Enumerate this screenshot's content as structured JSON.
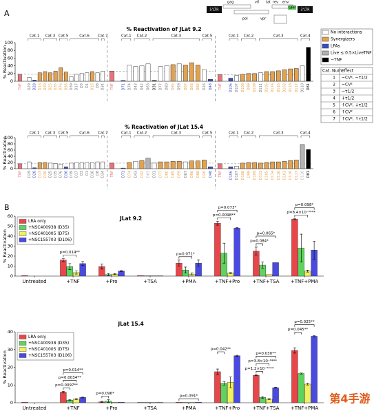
{
  "panel_a": {
    "label": "A",
    "legend": [
      {
        "name": "No interactions",
        "color": "#ffffff"
      },
      {
        "name": "Synergizers",
        "color": "#e3a24f"
      },
      {
        "name": "LPAs",
        "color": "#3a4cc4"
      },
      {
        "name": "Live ≤ 0.5×LiveTNF",
        "color": "#b3b3b3"
      },
      {
        "name": "−TNF",
        "color": "#000000"
      }
    ],
    "table": {
      "header": [
        "Cat. Num",
        "Effect"
      ],
      "rows": [
        [
          "1",
          "~CV², ~τ1/2"
        ],
        [
          "2",
          "~CV²"
        ],
        [
          "3",
          "~τ1/2"
        ],
        [
          "4",
          "↓τ1/2"
        ],
        [
          "5",
          "↑CV², ↓τ1/2"
        ],
        [
          "6",
          "↑CV²"
        ],
        [
          "7",
          "↑CV², ↑τ1/2"
        ]
      ]
    }
  },
  "genome": {
    "labels": [
      "5'LTR",
      "gag",
      "pol",
      "vif",
      "vpr",
      "tat",
      "rev",
      "env",
      "GFP",
      "3'LTR"
    ]
  },
  "panel_b": {
    "label": "B"
  },
  "watermark": "第4手游",
  "chart_data": [
    {
      "type": "column",
      "title": "% Reactivation of JLat 9.2",
      "y_label": "% Reactivation",
      "ylim": [
        0,
        100
      ],
      "yticks": [
        0,
        20,
        40,
        60,
        80,
        100
      ],
      "groups": [
        {
          "control": {
            "category": "TNF",
            "value": 18,
            "color": "#e8737a"
          },
          "clusters": [
            {
              "label": "Cat.1",
              "categories": [
                "D29",
                "D28",
                "D13"
              ],
              "values": [
                10,
                3,
                22
              ],
              "colors": [
                "#ffffff",
                "#3a4cc4",
                "#e3a24f"
              ]
            },
            {
              "label": "Cat.3",
              "categories": [
                "D30",
                "D25",
                "D35"
              ],
              "values": [
                25,
                22,
                26
              ],
              "colors": [
                "#e3a24f",
                "#e3a24f",
                "#e3a24f"
              ]
            },
            {
              "label": "Cat.5",
              "categories": [
                "D76",
                "D36"
              ],
              "values": [
                35,
                24
              ],
              "colors": [
                "#e3a24f",
                "#e3a24f"
              ]
            },
            {
              "label": "Cat.6",
              "categories": [
                "D39",
                "D17",
                "D3",
                "D1",
                "D16",
                "D8"
              ],
              "values": [
                12,
                18,
                20,
                22,
                25,
                22
              ],
              "colors": [
                "#ffffff",
                "#ffffff",
                "#ffffff",
                "#ffffff",
                "#e3a24f",
                "#ffffff"
              ]
            },
            {
              "label": "Cat.7",
              "categories": [
                "D34"
              ],
              "values": [
                26
              ],
              "colors": [
                "#ffffff"
              ]
            }
          ]
        },
        {
          "control": {
            "category": "TNF",
            "value": 26,
            "color": "#e8737a"
          },
          "clusters": [
            {
              "label": "Cat.1",
              "categories": [
                "D71",
                "D74"
              ],
              "values": [
                2,
                42
              ],
              "colors": [
                "#3a4cc4",
                "#ffffff"
              ]
            },
            {
              "label": "Cat.2",
              "categories": [
                "D43",
                "D42",
                "D63"
              ],
              "values": [
                38,
                40,
                45
              ],
              "colors": [
                "#ffffff",
                "#ffffff",
                "#ffffff"
              ]
            },
            {
              "label": "Cat.3",
              "categories": [
                "D31",
                "D77",
                "D80",
                "D85",
                "D59",
                "D67",
                "D66",
                "D86"
              ],
              "values": [
                2,
                38,
                40,
                43,
                45,
                42,
                48,
                42
              ],
              "colors": [
                "#000000",
                "#ffffff",
                "#ffffff",
                "#e3a24f",
                "#ffffff",
                "#e3a24f",
                "#e3a24f",
                "#e3a24f"
              ]
            },
            {
              "label": "Cat.5",
              "categories": [
                "D26",
                "D48"
              ],
              "values": [
                30,
                5
              ],
              "colors": [
                "#ffffff",
                "#3a4cc4"
              ]
            }
          ]
        },
        {
          "control": {
            "category": "TNF",
            "value": 17,
            "color": "#e8737a"
          },
          "clusters": [
            {
              "label": "Cat.1",
              "categories": [
                "D106",
                "D107"
              ],
              "values": [
                8,
                15
              ],
              "colors": [
                "#3a4cc4",
                "#ffffff"
              ]
            },
            {
              "label": "Cat.2",
              "categories": [
                "D108",
                "D99",
                "D109"
              ],
              "values": [
                18,
                20,
                20
              ],
              "colors": [
                "#e3a24f",
                "#e3a24f",
                "#e3a24f"
              ]
            },
            {
              "label": "Cat.3",
              "categories": [
                "D111",
                "D105",
                "D114",
                "D116",
                "D103",
                "D118",
                "D117"
              ],
              "values": [
                22,
                25,
                25,
                27,
                30,
                32,
                33
              ],
              "colors": [
                "#ffffff",
                "#e3a24f",
                "#e3a24f",
                "#e3a24f",
                "#e3a24f",
                "#e3a24f",
                "#e3a24f"
              ]
            },
            {
              "label": "Cat.4",
              "categories": [
                "D110",
                "D81"
              ],
              "values": [
                40,
                88
              ],
              "colors": [
                "#ffffff",
                "#000000"
              ]
            }
          ]
        }
      ]
    },
    {
      "type": "column",
      "title": "% Reactivation of JLat 15.4",
      "y_label": "% Reactivation",
      "ylim": [
        0,
        100
      ],
      "yticks": [
        0,
        20,
        40,
        60,
        80,
        100
      ],
      "groups": [
        {
          "control": {
            "category": "TNF",
            "value": 16,
            "color": "#e8737a"
          },
          "clusters": [
            {
              "label": "Cat.1",
              "categories": [
                "D29",
                "D28",
                "D13"
              ],
              "values": [
                22,
                3,
                20
              ],
              "colors": [
                "#ffffff",
                "#3a4cc4",
                "#e3a24f"
              ]
            },
            {
              "label": "Cat.3",
              "categories": [
                "D30",
                "D25",
                "D35"
              ],
              "values": [
                20,
                18,
                17
              ],
              "colors": [
                "#e3a24f",
                "#ffffff",
                "#ffffff"
              ]
            },
            {
              "label": "Cat.5",
              "categories": [
                "D76",
                "D36"
              ],
              "values": [
                14,
                6
              ],
              "colors": [
                "#ffffff",
                "#3a4cc4"
              ]
            },
            {
              "label": "Cat.6",
              "categories": [
                "D39",
                "D17",
                "D3",
                "D1",
                "D16",
                "D8"
              ],
              "values": [
                18,
                20,
                20,
                20,
                20,
                22
              ],
              "colors": [
                "#ffffff",
                "#ffffff",
                "#ffffff",
                "#ffffff",
                "#ffffff",
                "#ffffff"
              ]
            },
            {
              "label": "Cat.7",
              "categories": [
                "D34"
              ],
              "values": [
                22
              ],
              "colors": [
                "#ffffff"
              ]
            }
          ]
        },
        {
          "control": {
            "category": "TNF",
            "value": 18,
            "color": "#e8737a"
          },
          "clusters": [
            {
              "label": "Cat.1",
              "categories": [
                "D71",
                "D74"
              ],
              "values": [
                2,
                20
              ],
              "colors": [
                "#3a4cc4",
                "#e3a24f"
              ]
            },
            {
              "label": "Cat.2",
              "categories": [
                "D43",
                "D42",
                "D63"
              ],
              "values": [
                24,
                26,
                34
              ],
              "colors": [
                "#ffffff",
                "#e3a24f",
                "#b3b3b3"
              ]
            },
            {
              "label": "Cat.3",
              "categories": [
                "D31",
                "D77",
                "D80",
                "D85",
                "D59",
                "D67",
                "D66",
                "D86"
              ],
              "values": [
                18,
                22,
                22,
                24,
                24,
                22,
                25,
                25
              ],
              "colors": [
                "#ffffff",
                "#e3a24f",
                "#e3a24f",
                "#e3a24f",
                "#e3a24f",
                "#ffffff",
                "#e3a24f",
                "#e3a24f"
              ]
            },
            {
              "label": "Cat.5",
              "categories": [
                "D26",
                "D48"
              ],
              "values": [
                28,
                6
              ],
              "colors": [
                "#e3a24f",
                "#3a4cc4"
              ]
            }
          ]
        },
        {
          "control": {
            "category": "TNF",
            "value": 16,
            "color": "#e8737a"
          },
          "clusters": [
            {
              "label": "Cat.1",
              "categories": [
                "D106",
                "D107"
              ],
              "values": [
                6,
                8
              ],
              "colors": [
                "#3a4cc4",
                "#ffffff"
              ]
            },
            {
              "label": "Cat.2",
              "categories": [
                "D108",
                "D99",
                "D109"
              ],
              "values": [
                18,
                20,
                20
              ],
              "colors": [
                "#e3a24f",
                "#e3a24f",
                "#e3a24f"
              ]
            },
            {
              "label": "Cat.3",
              "categories": [
                "D111",
                "D105",
                "D114",
                "D116",
                "D103",
                "D118",
                "D117"
              ],
              "values": [
                18,
                20,
                22,
                22,
                24,
                26,
                28
              ],
              "colors": [
                "#e3a24f",
                "#e3a24f",
                "#e3a24f",
                "#e3a24f",
                "#e3a24f",
                "#e3a24f",
                "#e3a24f"
              ]
            },
            {
              "label": "Cat.4",
              "categories": [
                "D110",
                "D81"
              ],
              "values": [
                78,
                62
              ],
              "colors": [
                "#b3b3b3",
                "#000000"
              ]
            }
          ]
        }
      ]
    },
    {
      "type": "bar",
      "title": "JLat 9.2",
      "y_label": "% Reactivation",
      "legend": "upper left",
      "categories": [
        "Untreated",
        "+TNF",
        "+Pro",
        "+TSA",
        "+PMA",
        "+TNF+Pro",
        "+TNF+TSA",
        "+TNF+PMA"
      ],
      "ylim": [
        0,
        60
      ],
      "yticks": [
        0,
        10,
        20,
        30,
        40,
        50,
        60
      ],
      "series": [
        {
          "name": "LRA only",
          "color": "#e8474a",
          "values": [
            0.5,
            16,
            9.5,
            0.5,
            13,
            53,
            25,
            57
          ],
          "errors": [
            null,
            1.5,
            2.5,
            null,
            3,
            2,
            4,
            0.5
          ]
        },
        {
          "name": "+NSC400938 (D35)",
          "color": "#5fd35f",
          "values": [
            null,
            9.5,
            1.5,
            0.3,
            6,
            23,
            11,
            28
          ],
          "errors": [
            null,
            3,
            1,
            null,
            3,
            10,
            3,
            14
          ],
          "p_labels": [
            null,
            null,
            null,
            null,
            null,
            null,
            "p=0.084*",
            null
          ]
        },
        {
          "name": "+NSC401005 (D75)",
          "color": "#f0f060",
          "values": [
            null,
            3.5,
            2,
            0.3,
            2,
            3,
            1.5,
            5
          ],
          "errors": [
            null,
            1.5,
            0.5,
            null,
            1,
            0.5,
            null,
            1
          ],
          "p_labels": [
            null,
            "p=0.014**",
            null,
            null,
            "p=0.071*",
            "p=0.0098**",
            null,
            "p=8.4×10⁻⁶***"
          ]
        },
        {
          "name": "+NSC155703 (D106)",
          "color": "#4a4ae0",
          "values": [
            null,
            12.5,
            5,
            0.3,
            13,
            48,
            13.5,
            26
          ],
          "errors": [
            null,
            2,
            0.5,
            null,
            3,
            0.5,
            null,
            9
          ],
          "p_labels": [
            null,
            null,
            null,
            null,
            null,
            "p=0.073*",
            "p=0.065*",
            "p=0.098*"
          ]
        }
      ]
    },
    {
      "type": "bar",
      "title": "JLat 15.4",
      "y_label": "% Reactivation",
      "legend": "upper left",
      "categories": [
        "Untreated",
        "+TNF",
        "+Pro",
        "+TSA",
        "+PMA",
        "+TNF+Pro",
        "+TNF+TSA",
        "+TNF+PMA"
      ],
      "ylim": [
        0,
        40
      ],
      "yticks": [
        0,
        10,
        20,
        30,
        40
      ],
      "series": [
        {
          "name": "LRA only",
          "color": "#e8474a",
          "values": [
            0.3,
            6,
            0.5,
            0.2,
            0.3,
            17.5,
            15.5,
            29.5
          ],
          "errors": [
            null,
            0.5,
            0.3,
            null,
            null,
            1.5,
            0.3,
            1.5
          ]
        },
        {
          "name": "+NSC400938 (D35)",
          "color": "#5fd35f",
          "values": [
            null,
            1.5,
            1,
            0.2,
            0.2,
            11,
            3,
            16.5
          ],
          "errors": [
            null,
            0.3,
            0.8,
            null,
            null,
            1,
            0.5,
            0.3
          ],
          "p_labels": [
            null,
            "p=0.0097**",
            "p=0.096*",
            null,
            null,
            "p=0.042**",
            "p=1.2×10⁻⁵***",
            "p=0.045**"
          ]
        },
        {
          "name": "+NSC401005 (D75)",
          "color": "#f0f060",
          "values": [
            null,
            2,
            0.3,
            0.2,
            0.2,
            11.5,
            2,
            10.5
          ],
          "errors": [
            null,
            0.3,
            null,
            null,
            null,
            3,
            0.3,
            0.5
          ],
          "p_labels": [
            null,
            "p=0.0034**",
            null,
            null,
            null,
            null,
            "p=3.8×10⁻⁶***",
            null
          ]
        },
        {
          "name": "+NSC155703 (D106)",
          "color": "#4a4ae0",
          "values": [
            null,
            3,
            0.3,
            0.2,
            0.3,
            26.5,
            8.5,
            37.5
          ],
          "errors": [
            null,
            0.3,
            null,
            null,
            null,
            0.3,
            0.3,
            0.3
          ],
          "p_labels": [
            null,
            "p=0.014**",
            null,
            null,
            "p=0.091*",
            null,
            "p=0.030**",
            "p=0.025**"
          ]
        }
      ]
    }
  ]
}
